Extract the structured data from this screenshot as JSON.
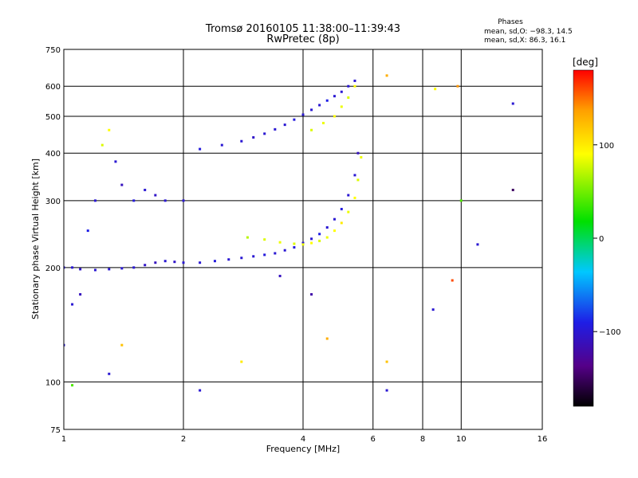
{
  "chart_data": {
    "type": "scatter",
    "title": "Tromsø 20160105 11:38:00–11:39:43",
    "subtitle": "RwPretec (8p)",
    "xlabel": "Frequency [MHz]",
    "ylabel": "Stationary phase Virtual Height [km]",
    "x_scale": "log",
    "y_scale": "log",
    "xlim": [
      1,
      16
    ],
    "ylim": [
      75,
      750
    ],
    "x_ticks": [
      "1",
      "2",
      "4",
      "6",
      "8",
      "10",
      "16"
    ],
    "x_tick_values": [
      1,
      2,
      4,
      6,
      8,
      10,
      16
    ],
    "y_ticks": [
      "750",
      "600",
      "500",
      "400",
      "300",
      "200",
      "100",
      "75"
    ],
    "y_tick_values": [
      750,
      600,
      500,
      400,
      300,
      200,
      100,
      75
    ],
    "grid": true,
    "phases_info": {
      "title": "Phases",
      "line_o": "mean, sd,O: −98.3, 14.5",
      "line_x": "mean, sd,X:  86.3, 16.1"
    },
    "colorbar": {
      "label": "[deg]",
      "range": [
        -180,
        180
      ],
      "ticks": [
        100,
        0,
        -100
      ],
      "tick_labels": [
        "100",
        "0",
        "−100"
      ]
    },
    "series": [
      {
        "trace": "O-mode low F-trace",
        "x": [
          1.0,
          1.05,
          1.1,
          1.2,
          1.3,
          1.4,
          1.5,
          1.6,
          1.7,
          1.8,
          1.9,
          2.0,
          2.2,
          2.4,
          2.6,
          2.8,
          3.0,
          3.2,
          3.4,
          3.6,
          3.8,
          4.0,
          4.2,
          4.4,
          4.6,
          4.8,
          5.0,
          5.2,
          5.4,
          5.5
        ],
        "y": [
          200,
          200,
          198,
          197,
          198,
          199,
          200,
          203,
          206,
          208,
          207,
          206,
          206,
          208,
          210,
          212,
          214,
          216,
          218,
          222,
          226,
          232,
          238,
          245,
          255,
          268,
          285,
          310,
          350,
          400
        ],
        "phase": [
          -100,
          -100,
          -105,
          -100,
          -100,
          -100,
          -100,
          -105,
          -110,
          -100,
          -105,
          -100,
          -100,
          -95,
          -100,
          -100,
          -100,
          -95,
          -100,
          -100,
          -95,
          -100,
          -100,
          -90,
          -100,
          -100,
          -95,
          -100,
          -100,
          -110
        ]
      },
      {
        "trace": "O-mode upper F-trace",
        "x": [
          2.5,
          2.8,
          3.0,
          3.2,
          3.4,
          3.6,
          3.8,
          4.0,
          4.2,
          4.4,
          4.6,
          4.8,
          5.0,
          5.2,
          5.4
        ],
        "y": [
          420,
          430,
          440,
          450,
          462,
          475,
          490,
          505,
          520,
          535,
          550,
          565,
          580,
          600,
          620
        ],
        "phase": [
          -100,
          -100,
          -105,
          -100,
          -100,
          -100,
          -95,
          -100,
          -100,
          -100,
          -90,
          -100,
          -100,
          -100,
          -100
        ]
      },
      {
        "trace": "X-mode F-trace",
        "x": [
          2.9,
          3.2,
          3.5,
          3.8,
          4.0,
          4.2,
          4.4,
          4.6,
          4.8,
          5.0,
          5.2,
          5.4,
          5.5,
          5.6
        ],
        "y": [
          240,
          237,
          233,
          231,
          230,
          232,
          235,
          240,
          250,
          262,
          280,
          305,
          340,
          390
        ],
        "phase": [
          70,
          80,
          85,
          80,
          85,
          90,
          80,
          85,
          90,
          100,
          85,
          90,
          80,
          85
        ]
      },
      {
        "trace": "X-mode upper trace",
        "x": [
          4.2,
          4.5,
          4.8,
          5.0,
          5.2,
          5.4
        ],
        "y": [
          460,
          480,
          500,
          530,
          560,
          600
        ],
        "phase": [
          80,
          85,
          90,
          85,
          80,
          90
        ]
      },
      {
        "trace": "diffuse low-frequency echoes",
        "x": [
          1.05,
          1.1,
          1.15,
          1.2,
          1.25,
          1.3,
          1.35,
          1.4,
          1.5,
          1.6,
          1.7,
          1.8,
          2.0,
          2.2
        ],
        "y": [
          160,
          170,
          250,
          300,
          420,
          460,
          380,
          330,
          300,
          320,
          310,
          300,
          300,
          410
        ],
        "phase": [
          -100,
          -110,
          -90,
          -100,
          80,
          90,
          -100,
          -110,
          -95,
          -100,
          -105,
          -100,
          -100,
          -95
        ]
      },
      {
        "trace": "scattered points",
        "x": [
          1.0,
          1.05,
          1.3,
          1.4,
          2.2,
          2.8,
          3.5,
          4.2,
          4.6,
          6.5,
          6.5,
          8.5,
          9.5,
          11.0,
          13.5,
          13.5,
          6.5,
          8.6,
          9.8,
          10.0
        ],
        "y": [
          125,
          98,
          105,
          125,
          95,
          113,
          190,
          170,
          130,
          113,
          95,
          155,
          185,
          230,
          320,
          540,
          640,
          590,
          600,
          300
        ],
        "phase": [
          -100,
          40,
          -100,
          120,
          -100,
          100,
          -110,
          -120,
          130,
          120,
          -100,
          -100,
          160,
          -100,
          -150,
          -100,
          130,
          90,
          140,
          40
        ]
      }
    ]
  }
}
